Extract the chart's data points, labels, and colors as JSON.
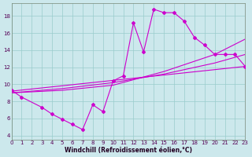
{
  "xlabel": "Windchill (Refroidissement éolien,°C)",
  "background_color": "#cce8ec",
  "grid_color": "#99cccc",
  "line_color": "#cc00cc",
  "xmin": 0,
  "xmax": 23,
  "ymin": 3.5,
  "ymax": 19.5,
  "xticks": [
    0,
    1,
    2,
    3,
    4,
    5,
    6,
    7,
    8,
    9,
    10,
    11,
    12,
    13,
    14,
    15,
    16,
    17,
    18,
    19,
    20,
    21,
    22,
    23
  ],
  "yticks": [
    4,
    6,
    8,
    10,
    12,
    14,
    16,
    18
  ],
  "curve_x": [
    0,
    1,
    3,
    4,
    5,
    6,
    7,
    8,
    9,
    10,
    11,
    12,
    13,
    14,
    15,
    16,
    17,
    18,
    19,
    20,
    21,
    22,
    23
  ],
  "curve_y": [
    9.3,
    8.5,
    7.3,
    6.5,
    5.9,
    5.3,
    4.7,
    7.6,
    6.8,
    10.4,
    11.0,
    17.2,
    13.8,
    18.8,
    18.4,
    18.4,
    17.4,
    15.5,
    14.6,
    13.5,
    13.5,
    13.5,
    12.1
  ],
  "line1_x": [
    0,
    23
  ],
  "line1_y": [
    9.2,
    12.1
  ],
  "line2_x": [
    0,
    5,
    10,
    15,
    20,
    23
  ],
  "line2_y": [
    9.0,
    9.5,
    10.2,
    11.2,
    12.5,
    13.5
  ],
  "line3_x": [
    0,
    5,
    10,
    15,
    20,
    23
  ],
  "line3_y": [
    9.0,
    9.3,
    9.9,
    11.5,
    13.5,
    15.3
  ]
}
